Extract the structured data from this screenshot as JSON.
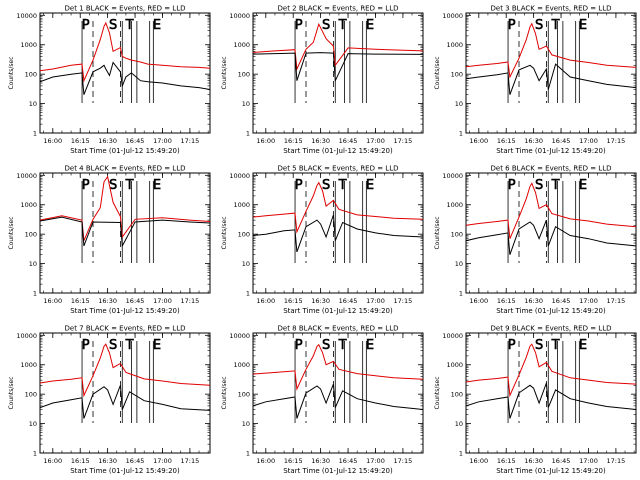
{
  "figure": {
    "background": "#ffffff",
    "colors": {
      "events": "#000000",
      "lld": "#e00000",
      "axis": "#000000"
    }
  },
  "chart_data": [
    {
      "type": "line",
      "title": "Det 1 BLACK = Events, RED = LLD",
      "xlabel": "Start Time (01-Jul-12 15:49:20)",
      "ylabel": "Counts/sec",
      "ylog": true,
      "ylim": [
        1,
        12000
      ],
      "xlim": [
        "15:53",
        "17:26"
      ],
      "x_tick_labels": [
        "16:00",
        "16:15",
        "16:30",
        "16:45",
        "17:00",
        "17:15"
      ],
      "y_tick_labels": [
        "1",
        "10",
        "100",
        "1000",
        "10000"
      ],
      "overlay_letters": [
        "P",
        "S",
        "T",
        "E"
      ],
      "series": [
        {
          "name": "Events",
          "color": "#000000",
          "x": [
            "15:53",
            "16:00",
            "16:10",
            "16:16",
            "16:17",
            "16:22",
            "16:26",
            "16:28",
            "16:29",
            "16:31",
            "16:33",
            "16:37",
            "16:38",
            "16:40",
            "16:43",
            "16:48",
            "16:52",
            "17:00",
            "17:10",
            "17:20",
            "17:26"
          ],
          "y": [
            55,
            80,
            100,
            110,
            20,
            120,
            160,
            200,
            150,
            90,
            250,
            120,
            40,
            80,
            110,
            60,
            55,
            50,
            40,
            35,
            30
          ]
        },
        {
          "name": "LLD",
          "color": "#e00000",
          "x": [
            "15:53",
            "16:00",
            "16:10",
            "16:16",
            "16:17",
            "16:22",
            "16:26",
            "16:28",
            "16:29",
            "16:31",
            "16:33",
            "16:37",
            "16:38",
            "16:40",
            "16:43",
            "16:48",
            "16:52",
            "17:00",
            "17:10",
            "17:20",
            "17:26"
          ],
          "y": [
            130,
            150,
            200,
            220,
            60,
            300,
            1500,
            4200,
            5500,
            2500,
            600,
            800,
            400,
            350,
            300,
            260,
            220,
            200,
            180,
            170,
            160
          ]
        }
      ]
    },
    {
      "type": "line",
      "title": "Det 2 BLACK = Events, RED = LLD",
      "xlabel": "Start Time (01-Jul-12 15:49:20)",
      "ylabel": "Counts/sec",
      "ylog": true,
      "ylim": [
        1,
        12000
      ],
      "xlim": [
        "15:53",
        "17:26"
      ],
      "x_tick_labels": [
        "16:00",
        "16:15",
        "16:30",
        "16:45",
        "17:00",
        "17:15"
      ],
      "y_tick_labels": [
        "1",
        "10",
        "100",
        "1000",
        "10000"
      ],
      "overlay_letters": [
        "P",
        "S",
        "T",
        "E"
      ],
      "series": [
        {
          "name": "Events",
          "color": "#000000",
          "x": [
            "15:53",
            "16:05",
            "16:16",
            "16:17",
            "16:22",
            "16:30",
            "16:37",
            "16:38",
            "16:45",
            "17:00",
            "17:26"
          ],
          "y": [
            480,
            500,
            520,
            60,
            520,
            540,
            520,
            60,
            500,
            480,
            470
          ]
        },
        {
          "name": "LLD",
          "color": "#e00000",
          "x": [
            "15:53",
            "16:05",
            "16:16",
            "16:17",
            "16:22",
            "16:26",
            "16:29",
            "16:33",
            "16:37",
            "16:38",
            "16:45",
            "17:00",
            "17:26"
          ],
          "y": [
            550,
            620,
            680,
            150,
            700,
            1200,
            5000,
            1600,
            900,
            200,
            780,
            700,
            620
          ]
        }
      ]
    },
    {
      "type": "line",
      "title": "Det 3 BLACK = Events, RED = LLD",
      "xlabel": "Start Time (01-Jul-12 15:49:20)",
      "ylabel": "Counts/sec",
      "ylog": true,
      "ylim": [
        1,
        12000
      ],
      "xlim": [
        "15:53",
        "17:26"
      ],
      "x_tick_labels": [
        "16:00",
        "16:15",
        "16:30",
        "16:45",
        "17:00",
        "17:15"
      ],
      "y_tick_labels": [
        "1",
        "10",
        "100",
        "1000",
        "10000"
      ],
      "overlay_letters": [
        "P",
        "S",
        "T",
        "E"
      ],
      "series": [
        {
          "name": "Events",
          "color": "#000000",
          "x": [
            "15:53",
            "16:00",
            "16:10",
            "16:16",
            "16:17",
            "16:22",
            "16:28",
            "16:30",
            "16:33",
            "16:37",
            "16:38",
            "16:42",
            "16:50",
            "17:00",
            "17:10",
            "17:26"
          ],
          "y": [
            70,
            80,
            95,
            110,
            20,
            140,
            200,
            160,
            60,
            150,
            30,
            220,
            80,
            60,
            45,
            35
          ]
        },
        {
          "name": "LLD",
          "color": "#e00000",
          "x": [
            "15:53",
            "16:00",
            "16:10",
            "16:16",
            "16:17",
            "16:22",
            "16:26",
            "16:28",
            "16:29",
            "16:31",
            "16:33",
            "16:37",
            "16:40",
            "16:50",
            "17:00",
            "17:10",
            "17:26"
          ],
          "y": [
            180,
            200,
            230,
            260,
            80,
            350,
            1500,
            4000,
            5200,
            2400,
            700,
            900,
            450,
            300,
            250,
            200,
            170
          ]
        }
      ]
    },
    {
      "type": "line",
      "title": "Det 4 BLACK = Events, RED = LLD",
      "xlabel": "Start Time (01-Jul-12 15:49:20)",
      "ylabel": "Counts/sec",
      "ylog": true,
      "ylim": [
        1,
        12000
      ],
      "xlim": [
        "15:53",
        "17:26"
      ],
      "x_tick_labels": [
        "16:00",
        "16:15",
        "16:30",
        "16:45",
        "17:00",
        "17:15"
      ],
      "y_tick_labels": [
        "1",
        "10",
        "100",
        "1000",
        "10000"
      ],
      "overlay_letters": [
        "P",
        "S",
        "T",
        "E"
      ],
      "series": [
        {
          "name": "Events",
          "color": "#000000",
          "x": [
            "15:53",
            "16:05",
            "16:16",
            "16:17",
            "16:22",
            "16:37",
            "16:38",
            "16:45",
            "17:00",
            "17:15",
            "17:26"
          ],
          "y": [
            280,
            380,
            260,
            40,
            260,
            250,
            40,
            260,
            300,
            260,
            240
          ]
        },
        {
          "name": "LLD",
          "color": "#e00000",
          "x": [
            "15:53",
            "16:05",
            "16:16",
            "16:17",
            "16:22",
            "16:26",
            "16:28",
            "16:30",
            "16:33",
            "16:37",
            "16:38",
            "16:45",
            "17:00",
            "17:15",
            "17:26"
          ],
          "y": [
            300,
            420,
            300,
            60,
            320,
            800,
            6000,
            9000,
            1200,
            400,
            80,
            320,
            360,
            300,
            270
          ]
        }
      ]
    },
    {
      "type": "line",
      "title": "Det 5 BLACK = Events, RED = LLD",
      "xlabel": "Start Time (01-Jul-12 15:49:20)",
      "ylabel": "Counts/sec",
      "ylog": true,
      "ylim": [
        1,
        12000
      ],
      "xlim": [
        "15:53",
        "17:26"
      ],
      "x_tick_labels": [
        "16:00",
        "16:15",
        "16:30",
        "16:45",
        "17:00",
        "17:15"
      ],
      "y_tick_labels": [
        "1",
        "10",
        "100",
        "1000",
        "10000"
      ],
      "overlay_letters": [
        "P",
        "S",
        "T",
        "E"
      ],
      "series": [
        {
          "name": "Events",
          "color": "#000000",
          "x": [
            "15:53",
            "16:00",
            "16:10",
            "16:16",
            "16:17",
            "16:22",
            "16:28",
            "16:30",
            "16:33",
            "16:37",
            "16:38",
            "16:42",
            "16:50",
            "17:00",
            "17:10",
            "17:26"
          ],
          "y": [
            90,
            100,
            130,
            140,
            25,
            180,
            300,
            220,
            80,
            450,
            60,
            250,
            150,
            110,
            90,
            80
          ]
        },
        {
          "name": "LLD",
          "color": "#e00000",
          "x": [
            "15:53",
            "16:00",
            "16:10",
            "16:16",
            "16:17",
            "16:22",
            "16:26",
            "16:28",
            "16:29",
            "16:31",
            "16:33",
            "16:37",
            "16:40",
            "16:50",
            "17:00",
            "17:10",
            "17:26"
          ],
          "y": [
            380,
            420,
            480,
            520,
            120,
            600,
            2000,
            4500,
            5600,
            3000,
            900,
            1400,
            700,
            450,
            400,
            350,
            320
          ]
        }
      ]
    },
    {
      "type": "line",
      "title": "Det 6 BLACK = Events, RED = LLD",
      "xlabel": "Start Time (01-Jul-12 15:49:20)",
      "ylabel": "Counts/sec",
      "ylog": true,
      "ylim": [
        1,
        12000
      ],
      "xlim": [
        "15:53",
        "17:26"
      ],
      "x_tick_labels": [
        "16:00",
        "16:15",
        "16:30",
        "16:45",
        "17:00",
        "17:15"
      ],
      "y_tick_labels": [
        "1",
        "10",
        "100",
        "1000",
        "10000"
      ],
      "overlay_letters": [
        "P",
        "S",
        "T",
        "E"
      ],
      "series": [
        {
          "name": "Events",
          "color": "#000000",
          "x": [
            "15:53",
            "16:00",
            "16:10",
            "16:16",
            "16:17",
            "16:22",
            "16:28",
            "16:30",
            "16:33",
            "16:37",
            "16:38",
            "16:42",
            "16:50",
            "17:00",
            "17:10",
            "17:26"
          ],
          "y": [
            60,
            75,
            95,
            110,
            20,
            150,
            260,
            200,
            70,
            300,
            40,
            180,
            90,
            70,
            50,
            40
          ]
        },
        {
          "name": "LLD",
          "color": "#e00000",
          "x": [
            "15:53",
            "16:00",
            "16:10",
            "16:16",
            "16:17",
            "16:22",
            "16:26",
            "16:28",
            "16:29",
            "16:31",
            "16:33",
            "16:37",
            "16:40",
            "16:50",
            "17:00",
            "17:10",
            "17:26"
          ],
          "y": [
            200,
            230,
            270,
            300,
            70,
            380,
            1600,
            4200,
            5300,
            2600,
            750,
            1000,
            500,
            330,
            280,
            220,
            180
          ]
        }
      ]
    },
    {
      "type": "line",
      "title": "Det 7 BLACK = Events, RED = LLD",
      "xlabel": "Start Time (01-Jul-12 15:49:20)",
      "ylabel": "Counts/sec",
      "ylog": true,
      "ylim": [
        1,
        12000
      ],
      "xlim": [
        "15:53",
        "17:26"
      ],
      "x_tick_labels": [
        "16:00",
        "16:15",
        "16:30",
        "16:45",
        "17:00",
        "17:15"
      ],
      "y_tick_labels": [
        "1",
        "10",
        "100",
        "1000",
        "10000"
      ],
      "overlay_letters": [
        "P",
        "S",
        "T",
        "E"
      ],
      "series": [
        {
          "name": "Events",
          "color": "#000000",
          "x": [
            "15:53",
            "16:00",
            "16:10",
            "16:16",
            "16:17",
            "16:22",
            "16:28",
            "16:30",
            "16:33",
            "16:37",
            "16:38",
            "16:42",
            "16:50",
            "17:00",
            "17:10",
            "17:26"
          ],
          "y": [
            35,
            50,
            65,
            75,
            15,
            100,
            180,
            140,
            45,
            200,
            30,
            120,
            60,
            45,
            32,
            28
          ]
        },
        {
          "name": "LLD",
          "color": "#e00000",
          "x": [
            "15:53",
            "16:00",
            "16:10",
            "16:16",
            "16:17",
            "16:22",
            "16:26",
            "16:28",
            "16:29",
            "16:31",
            "16:33",
            "16:37",
            "16:40",
            "16:50",
            "17:00",
            "17:10",
            "17:26"
          ],
          "y": [
            240,
            280,
            320,
            360,
            90,
            420,
            1700,
            4200,
            5000,
            2500,
            800,
            1100,
            550,
            330,
            280,
            230,
            200
          ]
        }
      ]
    },
    {
      "type": "line",
      "title": "Det 8 BLACK = Events, RED = LLD",
      "xlabel": "Start Time (01-Jul-12 15:49:20)",
      "ylabel": "Counts/sec",
      "ylog": true,
      "ylim": [
        1,
        12000
      ],
      "xlim": [
        "15:53",
        "17:26"
      ],
      "x_tick_labels": [
        "16:00",
        "16:15",
        "16:30",
        "16:45",
        "17:00",
        "17:15"
      ],
      "y_tick_labels": [
        "1",
        "10",
        "100",
        "1000",
        "10000"
      ],
      "overlay_letters": [
        "P",
        "S",
        "T",
        "E"
      ],
      "series": [
        {
          "name": "Events",
          "color": "#000000",
          "x": [
            "15:53",
            "16:00",
            "16:10",
            "16:16",
            "16:17",
            "16:22",
            "16:28",
            "16:30",
            "16:33",
            "16:37",
            "16:38",
            "16:42",
            "16:50",
            "17:00",
            "17:10",
            "17:26"
          ],
          "y": [
            40,
            55,
            70,
            80,
            15,
            110,
            190,
            150,
            50,
            220,
            35,
            130,
            70,
            50,
            38,
            30
          ]
        },
        {
          "name": "LLD",
          "color": "#e00000",
          "x": [
            "15:53",
            "16:00",
            "16:10",
            "16:16",
            "16:17",
            "16:22",
            "16:26",
            "16:28",
            "16:29",
            "16:31",
            "16:33",
            "16:37",
            "16:40",
            "16:50",
            "17:00",
            "17:10",
            "17:26"
          ],
          "y": [
            480,
            520,
            580,
            620,
            150,
            700,
            2000,
            4200,
            4800,
            2600,
            1000,
            1300,
            700,
            500,
            420,
            360,
            320
          ]
        }
      ]
    },
    {
      "type": "line",
      "title": "Det 9 BLACK = Events, RED = LLD",
      "xlabel": "Start Time (01-Jul-12 15:49:20)",
      "ylabel": "Counts/sec",
      "ylog": true,
      "ylim": [
        1,
        12000
      ],
      "xlim": [
        "15:53",
        "17:26"
      ],
      "x_tick_labels": [
        "16:00",
        "16:15",
        "16:30",
        "16:45",
        "17:00",
        "17:15"
      ],
      "y_tick_labels": [
        "1",
        "10",
        "100",
        "1000",
        "10000"
      ],
      "overlay_letters": [
        "P",
        "S",
        "T",
        "E"
      ],
      "series": [
        {
          "name": "Events",
          "color": "#000000",
          "x": [
            "15:53",
            "16:00",
            "16:10",
            "16:16",
            "16:17",
            "16:22",
            "16:28",
            "16:30",
            "16:33",
            "16:37",
            "16:38",
            "16:42",
            "16:50",
            "17:00",
            "17:10",
            "17:26"
          ],
          "y": [
            40,
            55,
            70,
            80,
            15,
            110,
            200,
            160,
            50,
            240,
            35,
            140,
            70,
            50,
            38,
            30
          ]
        },
        {
          "name": "LLD",
          "color": "#e00000",
          "x": [
            "15:53",
            "16:00",
            "16:10",
            "16:16",
            "16:17",
            "16:22",
            "16:26",
            "16:28",
            "16:29",
            "16:31",
            "16:33",
            "16:37",
            "16:40",
            "16:50",
            "17:00",
            "17:10",
            "17:26"
          ],
          "y": [
            260,
            300,
            340,
            380,
            90,
            450,
            1800,
            4300,
            5000,
            2600,
            850,
            1200,
            600,
            360,
            300,
            250,
            220
          ]
        }
      ]
    }
  ]
}
